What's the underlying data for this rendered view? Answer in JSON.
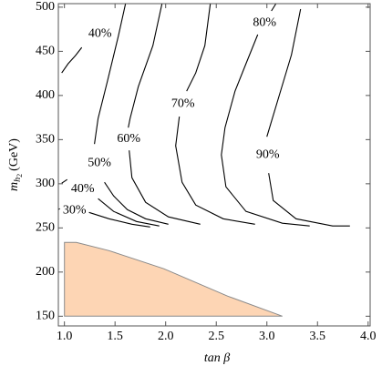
{
  "chart_data": {
    "type": "contour",
    "xlabel": "tan β",
    "ylabel_symbol": "m",
    "ylabel_subscript": "h",
    "ylabel_sub_subscript": "2",
    "ylabel_unit": "(GeV)",
    "xlim": [
      0.94,
      4.02
    ],
    "ylim": [
      139,
      504
    ],
    "xticks": [
      {
        "value": 1,
        "label": "1.0"
      },
      {
        "value": 1.5,
        "label": "1.5"
      },
      {
        "value": 2,
        "label": "2.0"
      },
      {
        "value": 2.5,
        "label": "2.5"
      },
      {
        "value": 3,
        "label": "3.0"
      },
      {
        "value": 3.5,
        "label": "3.5"
      },
      {
        "value": 4,
        "label": "4.0"
      }
    ],
    "yticks": [
      150,
      200,
      250,
      300,
      350,
      400,
      450,
      500
    ],
    "line_color": "#000000",
    "series": [
      {
        "name": "40%",
        "x": [
          0.973,
          1.036,
          1.108,
          1.171
        ],
        "y": [
          425.5,
          435.9,
          445.1,
          454.4
        ]
      },
      {
        "name": "50%",
        "x": [
          1.604,
          1.532,
          1.423,
          1.333,
          1.297,
          null,
          1.396,
          1.486,
          1.622,
          1.802,
          2.027
        ],
        "y": [
          504,
          466.8,
          415.2,
          374,
          345,
          null,
          301.7,
          286.2,
          270.7,
          260.4,
          254.2
        ]
      },
      {
        "name": "40%",
        "x": [
          0.973,
          1.027,
          null,
          1.333,
          1.486,
          1.712,
          1.937
        ],
        "y": [
          300.7,
          304.8,
          null,
          283.1,
          268.7,
          257.3,
          252.2
        ]
      },
      {
        "name": "30%",
        "x": [
          0.937,
          0.955,
          null,
          1.243,
          1.441,
          1.667,
          1.847
        ],
        "y": [
          270.7,
          271.8,
          null,
          267.6,
          260.4,
          254.2,
          251.1
        ]
      },
      {
        "name": "60%",
        "x": [
          1.964,
          1.874,
          1.73,
          1.649,
          1.631,
          null,
          1.64,
          1.667,
          1.802,
          2.027,
          2.342
        ],
        "y": [
          504,
          456.5,
          410,
          374,
          363.6,
          null,
          337.8,
          306.9,
          279,
          262.5,
          254.2
        ]
      },
      {
        "name": "70%",
        "x": [
          2.441,
          2.387,
          2.297,
          2.207,
          null,
          2.135,
          2.099,
          2.162,
          2.297,
          2.568,
          2.883
        ],
        "y": [
          504,
          456.5,
          425.5,
          404.9,
          null,
          376,
          343,
          301.7,
          275.9,
          260.4,
          254.2
        ]
      },
      {
        "name": "80%",
        "x": [
          3.09,
          3.045,
          null,
          2.91,
          2.793,
          2.685,
          2.586,
          2.55,
          2.595,
          2.793,
          3.153,
          3.423
        ],
        "y": [
          504,
          495.7,
          null,
          468.9,
          435.9,
          404.9,
          363.6,
          332.7,
          296.5,
          268.7,
          255.3,
          252.2
        ]
      },
      {
        "name": "90%",
        "x": [
          3.333,
          3.243,
          3.135,
          3.027,
          3.0,
          null,
          3.018,
          3.063,
          3.288,
          3.649,
          3.82
        ],
        "y": [
          497.8,
          446.2,
          404.9,
          363.6,
          353.3,
          null,
          312,
          281.1,
          260.4,
          252.2,
          252.2
        ]
      }
    ],
    "region": {
      "color": "#fdd5b4",
      "edge_color": "#8a8a8a",
      "x": [
        1.0,
        1.117,
        1.441,
        1.982,
        2.613,
        3.153,
        1.0
      ],
      "y": [
        233.6,
        233.6,
        224.3,
        203.7,
        172.7,
        150,
        150
      ]
    }
  }
}
